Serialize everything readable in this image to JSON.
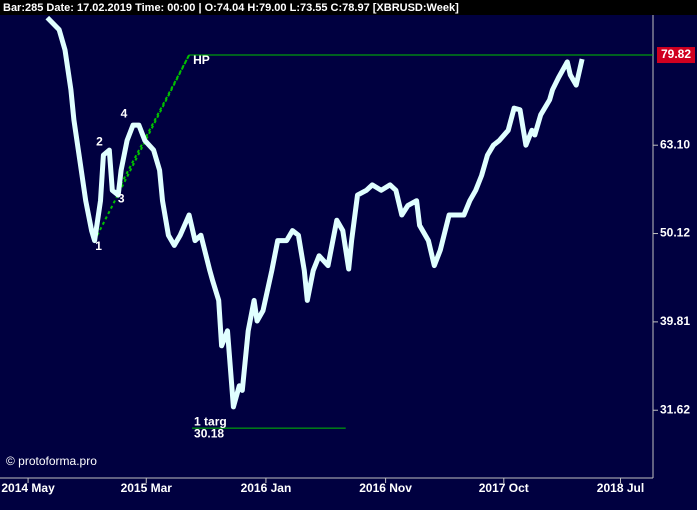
{
  "header": "Bar:285 Date: 17.02.2019 Time: 00:00 | O:74.04 H:79.00 L:73.55 C:78.97 [XBRUSD:Week]",
  "watermark": "© protoforma.pro",
  "chart_data": {
    "type": "line",
    "log_scale": true,
    "color": "#e0ffff",
    "x": [
      16,
      20,
      22,
      24,
      25,
      27,
      29,
      31,
      32,
      34,
      35,
      37,
      38,
      40,
      41,
      43,
      45,
      47,
      49,
      52,
      54,
      55,
      57,
      59,
      61,
      64,
      66,
      68,
      71,
      72,
      74,
      75,
      77,
      79,
      81,
      82,
      84,
      86,
      87,
      89,
      92,
      94,
      97,
      99,
      101,
      103,
      104,
      106,
      108,
      111,
      114,
      116,
      118,
      119,
      121,
      124,
      126,
      129,
      132,
      134,
      136,
      138,
      141,
      142,
      145,
      147,
      149,
      152,
      154,
      157,
      159,
      161,
      163,
      165,
      167,
      169,
      172,
      174,
      176,
      178,
      180,
      181,
      183,
      186,
      187,
      189,
      192,
      193,
      195,
      197
    ],
    "values": [
      88.0,
      85.3,
      80.9,
      72.9,
      67.4,
      60.7,
      54.6,
      50.5,
      49.2,
      54.6,
      61.5,
      62.3,
      56.1,
      55.4,
      59.1,
      63.9,
      66.5,
      66.5,
      63.9,
      62.3,
      59.1,
      54.6,
      49.9,
      48.6,
      49.9,
      52.6,
      49.2,
      49.9,
      45.5,
      44.3,
      42.1,
      37.4,
      38.9,
      31.9,
      33.7,
      33.3,
      38.9,
      42.1,
      39.9,
      41.0,
      45.5,
      49.2,
      49.2,
      50.5,
      49.9,
      45.5,
      42.1,
      45.5,
      47.3,
      46.1,
      51.9,
      50.5,
      45.7,
      49.2,
      55.4,
      56.1,
      56.9,
      56.1,
      56.9,
      56.1,
      52.6,
      53.9,
      54.6,
      51.2,
      49.2,
      46.1,
      48.0,
      52.6,
      52.6,
      52.6,
      54.6,
      56.1,
      58.3,
      61.5,
      63.1,
      63.9,
      65.6,
      69.5,
      69.2,
      63.1,
      65.6,
      64.8,
      68.3,
      71.0,
      72.9,
      75.2,
      78.4,
      75.8,
      73.8,
      78.97
    ],
    "xlim": [
      0,
      221
    ],
    "xticks": [
      {
        "value": 9.5,
        "label": "2014 May"
      },
      {
        "value": 49.5,
        "label": "2015 Mar"
      },
      {
        "value": 90,
        "label": "2016 Jan"
      },
      {
        "value": 130.5,
        "label": "2016 Nov"
      },
      {
        "value": 170.5,
        "label": "2017 Oct"
      },
      {
        "value": 210,
        "label": "2018 Jul"
      }
    ],
    "ylim": [
      26.5,
      88.6
    ],
    "yticks": [
      {
        "value": 63.1,
        "label": "63.10"
      },
      50.12,
      39.81,
      31.62
    ],
    "annotations": [
      {
        "label": "1",
        "x": 32,
        "y": 49.2
      },
      {
        "label": "2",
        "x": 35,
        "y": 62.3
      },
      {
        "label": "3",
        "x": 39,
        "y": 55.4
      },
      {
        "label": "4",
        "x": 44,
        "y": 67.0
      }
    ],
    "levels": [
      {
        "label": "HP",
        "value": 79.82,
        "x_start": 64
      },
      {
        "label": "1 targ",
        "value": 30.18,
        "x_start": 65,
        "x_end": 117
      }
    ]
  }
}
